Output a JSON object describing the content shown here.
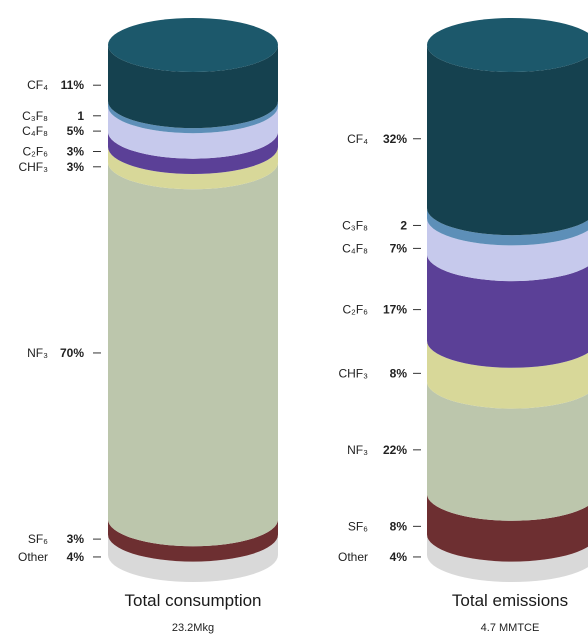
{
  "chart_data": [
    {
      "type": "stacked-cylinder",
      "title": "Total consumption",
      "subtitle": "23.2Mkg",
      "series": [
        {
          "gas": "CF₄",
          "label": "11%",
          "value": 11,
          "color": "#15414f"
        },
        {
          "gas": "C₃F₈",
          "label": "1",
          "value": 1,
          "color": "#5d8fb8"
        },
        {
          "gas": "C₄F₈",
          "label": "5%",
          "value": 5,
          "color": "#c6c9ec"
        },
        {
          "gas": "C₂F₆",
          "label": "3%",
          "value": 3,
          "color": "#5b4097"
        },
        {
          "gas": "CHF₃",
          "label": "3%",
          "value": 3,
          "color": "#d8d899"
        },
        {
          "gas": "NF₃",
          "label": "70%",
          "value": 70,
          "color": "#bcc6ac"
        },
        {
          "gas": "SF₆",
          "label": "3%",
          "value": 3,
          "color": "#6d2f31"
        },
        {
          "gas": "Other",
          "label": "4%",
          "value": 4,
          "color": "#d9d9d9"
        }
      ]
    },
    {
      "type": "stacked-cylinder",
      "title": "Total emissions",
      "subtitle": "4.7 MMTCE",
      "series": [
        {
          "gas": "CF₄",
          "label": "32%",
          "value": 32,
          "color": "#15414f"
        },
        {
          "gas": "C₃F₈",
          "label": "2",
          "value": 2,
          "color": "#5d8fb8"
        },
        {
          "gas": "C₄F₈",
          "label": "7%",
          "value": 7,
          "color": "#c6c9ec"
        },
        {
          "gas": "C₂F₆",
          "label": "17%",
          "value": 17,
          "color": "#5b4097"
        },
        {
          "gas": "CHF₃",
          "label": "8%",
          "value": 8,
          "color": "#d8d899"
        },
        {
          "gas": "NF₃",
          "label": "22%",
          "value": 22,
          "color": "#bcc6ac"
        },
        {
          "gas": "SF₆",
          "label": "8%",
          "value": 8,
          "color": "#6d2f31"
        },
        {
          "gas": "Other",
          "label": "4%",
          "value": 4,
          "color": "#d9d9d9"
        }
      ]
    }
  ]
}
